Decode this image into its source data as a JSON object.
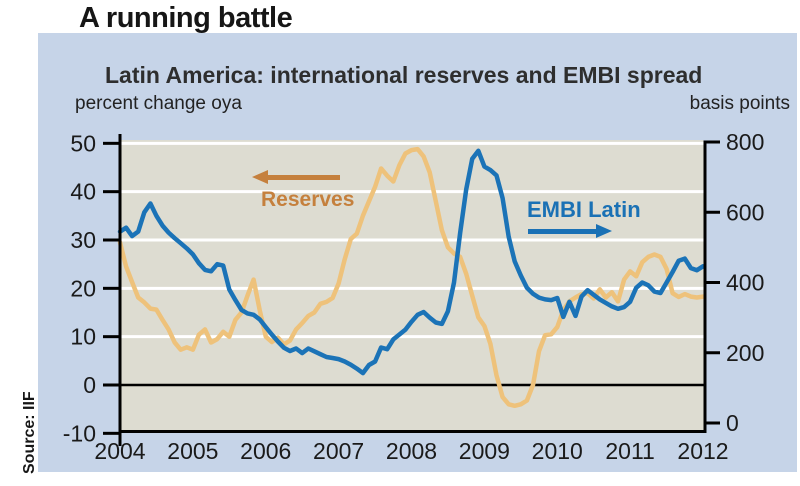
{
  "page": {
    "heading": "A running battle",
    "source": "Source: IIF"
  },
  "chart": {
    "title": "Latin America: international reserves and EMBI spread",
    "left_axis_label": "percent change oya",
    "right_axis_label": "basis points",
    "legend": {
      "reserves_label": "Reserves",
      "embi_label": "EMBI Latin"
    }
  },
  "colors": {
    "panel_bg": "#c6d4e8",
    "plot_bg": "#dddcd1",
    "gridline": "#ffffff",
    "axis": "#000000",
    "text": "#1a1a1a",
    "reserves_line": "#eec27b",
    "embi_line": "#1b73b7",
    "reserves_legend": "#c5803d",
    "embi_legend": "#1a71b5"
  },
  "chart_data": {
    "type": "line",
    "title": "Latin America: international reserves and EMBI spread",
    "x_frequency": "monthly",
    "x_start": "2004-01",
    "x_end": "2012-01",
    "x_tick_labels": [
      "2004",
      "2005",
      "2006",
      "2007",
      "2008",
      "2009",
      "2010",
      "2011",
      "2012"
    ],
    "left_axis": {
      "label": "percent change oya",
      "range": [
        -10,
        50
      ],
      "ticks": [
        50,
        40,
        30,
        20,
        10,
        0,
        -10
      ]
    },
    "right_axis": {
      "label": "basis points",
      "range": [
        0,
        800
      ],
      "ticks": [
        800,
        600,
        400,
        200,
        0
      ]
    },
    "grid": {
      "gridlines_left_values": [
        10,
        20,
        30,
        40,
        50
      ],
      "zero_line_left_value": 0
    },
    "legend_position": "inside-plot",
    "series": [
      {
        "name": "Reserves",
        "axis": "left",
        "color": "#eec27b",
        "values": [
          29.5,
          24.5,
          21.3,
          18.1,
          17.1,
          15.8,
          15.6,
          13.5,
          11.5,
          8.8,
          7.3,
          7.8,
          7.3,
          10.4,
          11.5,
          8.8,
          9.5,
          11.0,
          10.0,
          13.5,
          15.0,
          18.5,
          21.8,
          15.5,
          10.0,
          8.9,
          9.8,
          8.4,
          9.2,
          11.5,
          12.8,
          14.3,
          15.0,
          16.8,
          17.2,
          18.0,
          21.0,
          26.0,
          30.2,
          31.3,
          35.0,
          38.0,
          41.0,
          44.8,
          43.3,
          42.1,
          45.5,
          47.9,
          48.6,
          48.8,
          47.3,
          44.0,
          38.0,
          32.0,
          28.5,
          27.2,
          26.5,
          23.0,
          18.5,
          14.0,
          12.2,
          8.5,
          2.0,
          -2.5,
          -4.0,
          -4.3,
          -4.0,
          -3.2,
          0.0,
          7.0,
          10.3,
          10.5,
          12.0,
          15.5,
          17.3,
          18.1,
          18.8,
          19.0,
          17.9,
          19.8,
          18.1,
          19.2,
          17.3,
          21.8,
          23.5,
          22.5,
          25.4,
          26.5,
          27.0,
          26.5,
          24.0,
          19.0,
          18.2,
          18.8,
          18.3,
          18.1,
          18.3
        ]
      },
      {
        "name": "EMBI Latin",
        "axis": "right",
        "color": "#1b73b7",
        "values": [
          545,
          556,
          532,
          545,
          600,
          625,
          590,
          562,
          542,
          526,
          512,
          497,
          480,
          455,
          436,
          432,
          452,
          448,
          380,
          350,
          322,
          312,
          308,
          295,
          273,
          252,
          232,
          214,
          205,
          212,
          199,
          212,
          204,
          196,
          188,
          185,
          182,
          175,
          166,
          155,
          142,
          165,
          175,
          215,
          210,
          238,
          252,
          266,
          288,
          308,
          316,
          300,
          286,
          282,
          318,
          400,
          540,
          665,
          752,
          775,
          730,
          720,
          705,
          640,
          530,
          460,
          420,
          385,
          368,
          357,
          352,
          350,
          356,
          302,
          345,
          305,
          360,
          378,
          365,
          352,
          342,
          332,
          325,
          330,
          345,
          385,
          400,
          392,
          374,
          370,
          400,
          430,
          462,
          468,
          441,
          435,
          446
        ]
      }
    ]
  }
}
